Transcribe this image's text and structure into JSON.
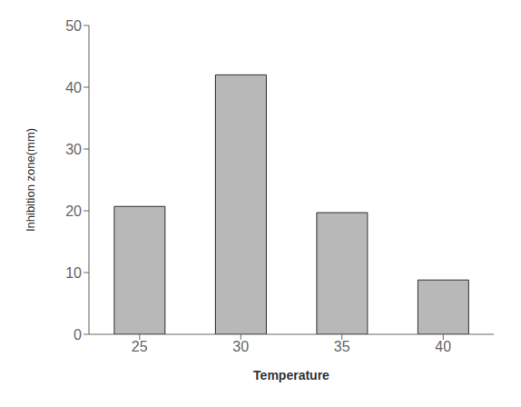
{
  "chart_data": {
    "type": "bar",
    "categories": [
      "25",
      "30",
      "35",
      "40"
    ],
    "values": [
      20.7,
      42.0,
      19.7,
      8.8
    ],
    "color": "#b8b8b8",
    "xlabel": "Temperature",
    "ylabel": "Inhibition zone(mm)",
    "ylim": [
      0,
      50
    ],
    "yticks": [
      0,
      10,
      20,
      30,
      40,
      50
    ],
    "grid": false
  }
}
